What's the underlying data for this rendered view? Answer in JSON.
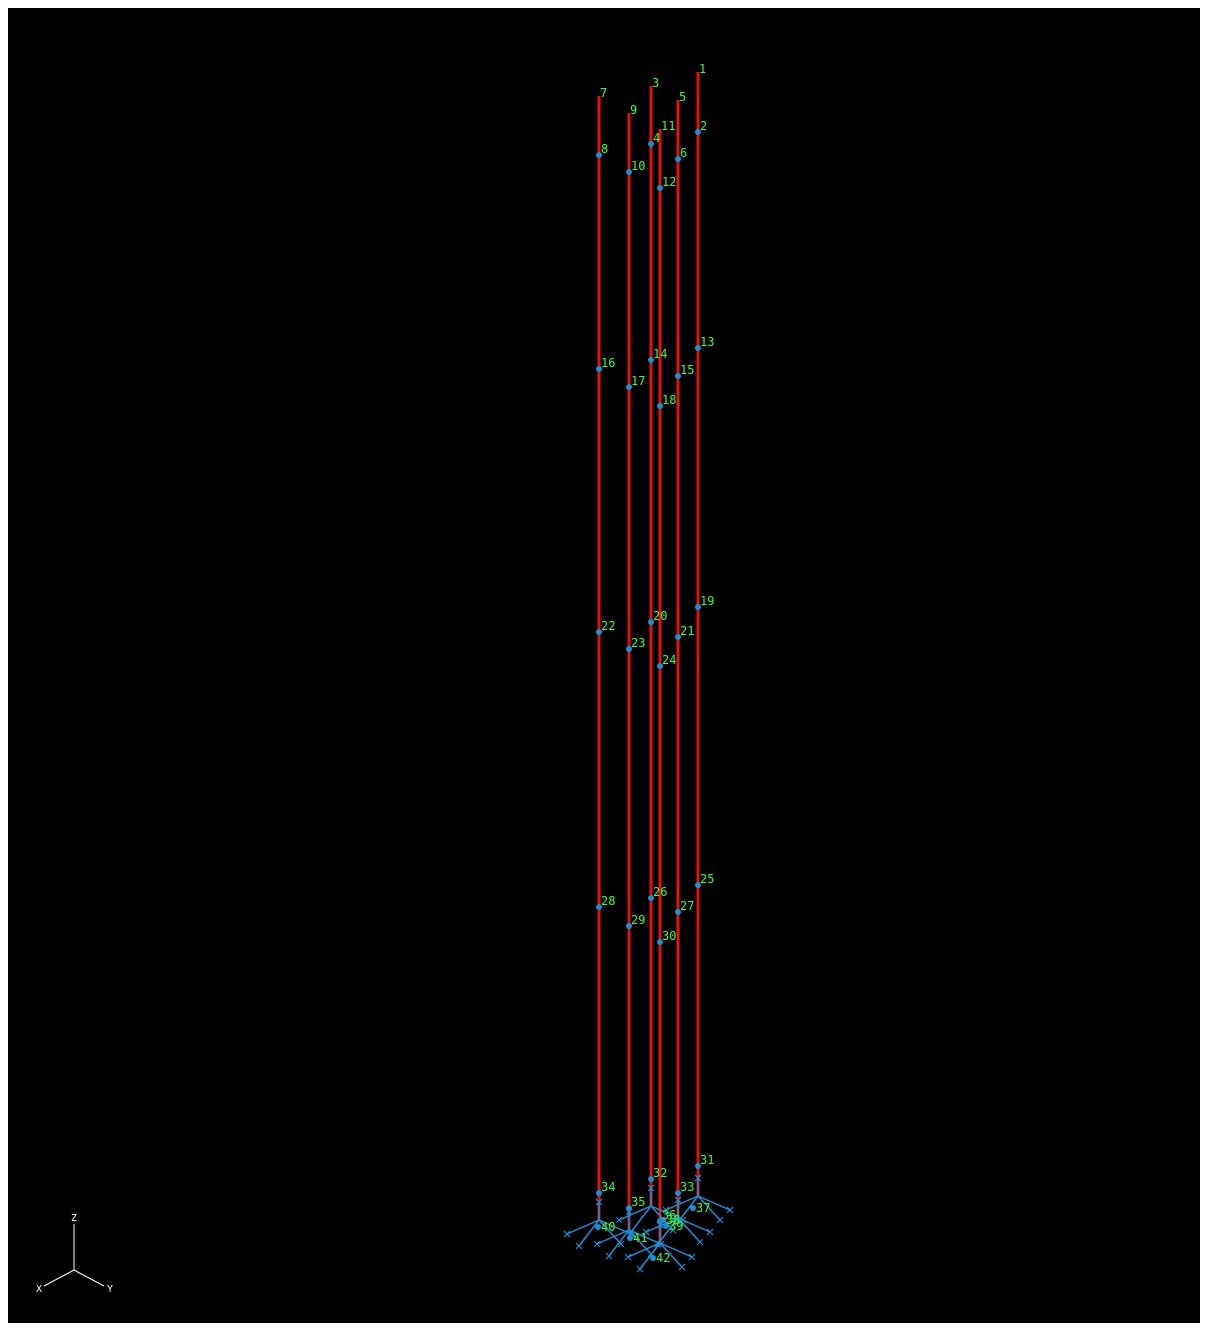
{
  "colors": {
    "background": "#000000",
    "member": "#e8100c",
    "node": "#1a8fd6",
    "node_label": "#33ff33",
    "support": "#1a8fd6",
    "axis": "#ffffff"
  },
  "axis_triad": {
    "z_label": "Z",
    "x_label": "X",
    "y_label": "Y"
  },
  "columns": [
    {
      "top_node": "1",
      "nodes": [
        "2",
        "13",
        "19",
        "25",
        "31"
      ],
      "base_node": "37"
    },
    {
      "top_node": "3",
      "nodes": [
        "4",
        "14",
        "20",
        "26",
        "32"
      ],
      "base_node": "38"
    },
    {
      "top_node": "5",
      "nodes": [
        "6",
        "15",
        "21",
        "27",
        "33"
      ],
      "base_node": "39"
    },
    {
      "top_node": "7",
      "nodes": [
        "8",
        "16",
        "22",
        "28",
        "34"
      ],
      "base_node": "40"
    },
    {
      "top_node": "9",
      "nodes": [
        "10",
        "17",
        "23",
        "29",
        "35"
      ],
      "base_node": "41"
    },
    {
      "top_node": "11",
      "nodes": [
        "12",
        "18",
        "24",
        "30",
        "36"
      ],
      "base_node": "42"
    }
  ]
}
